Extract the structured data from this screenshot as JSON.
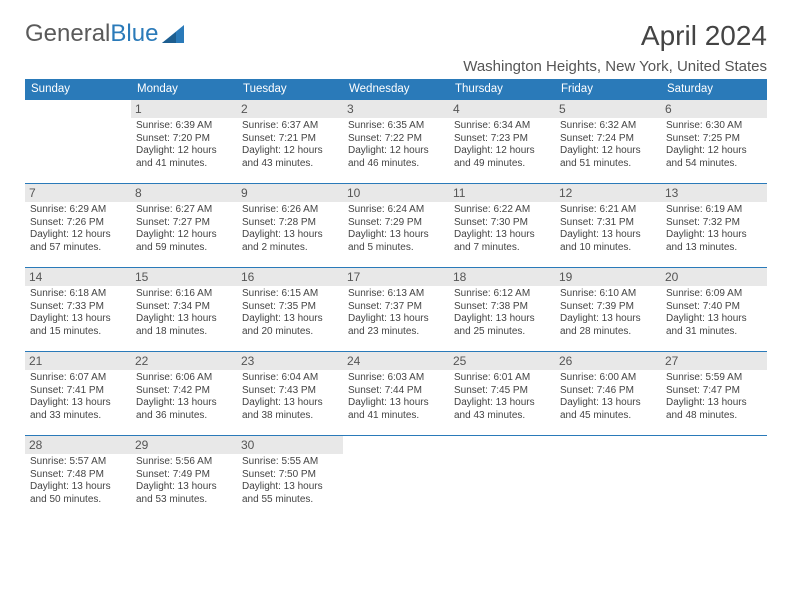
{
  "logo": {
    "text1": "General",
    "text2": "Blue"
  },
  "title": "April 2024",
  "location": "Washington Heights, New York, United States",
  "colors": {
    "header_bg": "#2a7ab9",
    "header_fg": "#ffffff",
    "daynum_bg": "#e8e8e8",
    "text": "#444444",
    "rule": "#2a7ab9"
  },
  "day_headers": [
    "Sunday",
    "Monday",
    "Tuesday",
    "Wednesday",
    "Thursday",
    "Friday",
    "Saturday"
  ],
  "weeks": [
    [
      null,
      {
        "n": "1",
        "sr": "Sunrise: 6:39 AM",
        "ss": "Sunset: 7:20 PM",
        "d1": "Daylight: 12 hours",
        "d2": "and 41 minutes."
      },
      {
        "n": "2",
        "sr": "Sunrise: 6:37 AM",
        "ss": "Sunset: 7:21 PM",
        "d1": "Daylight: 12 hours",
        "d2": "and 43 minutes."
      },
      {
        "n": "3",
        "sr": "Sunrise: 6:35 AM",
        "ss": "Sunset: 7:22 PM",
        "d1": "Daylight: 12 hours",
        "d2": "and 46 minutes."
      },
      {
        "n": "4",
        "sr": "Sunrise: 6:34 AM",
        "ss": "Sunset: 7:23 PM",
        "d1": "Daylight: 12 hours",
        "d2": "and 49 minutes."
      },
      {
        "n": "5",
        "sr": "Sunrise: 6:32 AM",
        "ss": "Sunset: 7:24 PM",
        "d1": "Daylight: 12 hours",
        "d2": "and 51 minutes."
      },
      {
        "n": "6",
        "sr": "Sunrise: 6:30 AM",
        "ss": "Sunset: 7:25 PM",
        "d1": "Daylight: 12 hours",
        "d2": "and 54 minutes."
      }
    ],
    [
      {
        "n": "7",
        "sr": "Sunrise: 6:29 AM",
        "ss": "Sunset: 7:26 PM",
        "d1": "Daylight: 12 hours",
        "d2": "and 57 minutes."
      },
      {
        "n": "8",
        "sr": "Sunrise: 6:27 AM",
        "ss": "Sunset: 7:27 PM",
        "d1": "Daylight: 12 hours",
        "d2": "and 59 minutes."
      },
      {
        "n": "9",
        "sr": "Sunrise: 6:26 AM",
        "ss": "Sunset: 7:28 PM",
        "d1": "Daylight: 13 hours",
        "d2": "and 2 minutes."
      },
      {
        "n": "10",
        "sr": "Sunrise: 6:24 AM",
        "ss": "Sunset: 7:29 PM",
        "d1": "Daylight: 13 hours",
        "d2": "and 5 minutes."
      },
      {
        "n": "11",
        "sr": "Sunrise: 6:22 AM",
        "ss": "Sunset: 7:30 PM",
        "d1": "Daylight: 13 hours",
        "d2": "and 7 minutes."
      },
      {
        "n": "12",
        "sr": "Sunrise: 6:21 AM",
        "ss": "Sunset: 7:31 PM",
        "d1": "Daylight: 13 hours",
        "d2": "and 10 minutes."
      },
      {
        "n": "13",
        "sr": "Sunrise: 6:19 AM",
        "ss": "Sunset: 7:32 PM",
        "d1": "Daylight: 13 hours",
        "d2": "and 13 minutes."
      }
    ],
    [
      {
        "n": "14",
        "sr": "Sunrise: 6:18 AM",
        "ss": "Sunset: 7:33 PM",
        "d1": "Daylight: 13 hours",
        "d2": "and 15 minutes."
      },
      {
        "n": "15",
        "sr": "Sunrise: 6:16 AM",
        "ss": "Sunset: 7:34 PM",
        "d1": "Daylight: 13 hours",
        "d2": "and 18 minutes."
      },
      {
        "n": "16",
        "sr": "Sunrise: 6:15 AM",
        "ss": "Sunset: 7:35 PM",
        "d1": "Daylight: 13 hours",
        "d2": "and 20 minutes."
      },
      {
        "n": "17",
        "sr": "Sunrise: 6:13 AM",
        "ss": "Sunset: 7:37 PM",
        "d1": "Daylight: 13 hours",
        "d2": "and 23 minutes."
      },
      {
        "n": "18",
        "sr": "Sunrise: 6:12 AM",
        "ss": "Sunset: 7:38 PM",
        "d1": "Daylight: 13 hours",
        "d2": "and 25 minutes."
      },
      {
        "n": "19",
        "sr": "Sunrise: 6:10 AM",
        "ss": "Sunset: 7:39 PM",
        "d1": "Daylight: 13 hours",
        "d2": "and 28 minutes."
      },
      {
        "n": "20",
        "sr": "Sunrise: 6:09 AM",
        "ss": "Sunset: 7:40 PM",
        "d1": "Daylight: 13 hours",
        "d2": "and 31 minutes."
      }
    ],
    [
      {
        "n": "21",
        "sr": "Sunrise: 6:07 AM",
        "ss": "Sunset: 7:41 PM",
        "d1": "Daylight: 13 hours",
        "d2": "and 33 minutes."
      },
      {
        "n": "22",
        "sr": "Sunrise: 6:06 AM",
        "ss": "Sunset: 7:42 PM",
        "d1": "Daylight: 13 hours",
        "d2": "and 36 minutes."
      },
      {
        "n": "23",
        "sr": "Sunrise: 6:04 AM",
        "ss": "Sunset: 7:43 PM",
        "d1": "Daylight: 13 hours",
        "d2": "and 38 minutes."
      },
      {
        "n": "24",
        "sr": "Sunrise: 6:03 AM",
        "ss": "Sunset: 7:44 PM",
        "d1": "Daylight: 13 hours",
        "d2": "and 41 minutes."
      },
      {
        "n": "25",
        "sr": "Sunrise: 6:01 AM",
        "ss": "Sunset: 7:45 PM",
        "d1": "Daylight: 13 hours",
        "d2": "and 43 minutes."
      },
      {
        "n": "26",
        "sr": "Sunrise: 6:00 AM",
        "ss": "Sunset: 7:46 PM",
        "d1": "Daylight: 13 hours",
        "d2": "and 45 minutes."
      },
      {
        "n": "27",
        "sr": "Sunrise: 5:59 AM",
        "ss": "Sunset: 7:47 PM",
        "d1": "Daylight: 13 hours",
        "d2": "and 48 minutes."
      }
    ],
    [
      {
        "n": "28",
        "sr": "Sunrise: 5:57 AM",
        "ss": "Sunset: 7:48 PM",
        "d1": "Daylight: 13 hours",
        "d2": "and 50 minutes."
      },
      {
        "n": "29",
        "sr": "Sunrise: 5:56 AM",
        "ss": "Sunset: 7:49 PM",
        "d1": "Daylight: 13 hours",
        "d2": "and 53 minutes."
      },
      {
        "n": "30",
        "sr": "Sunrise: 5:55 AM",
        "ss": "Sunset: 7:50 PM",
        "d1": "Daylight: 13 hours",
        "d2": "and 55 minutes."
      },
      null,
      null,
      null,
      null
    ]
  ]
}
